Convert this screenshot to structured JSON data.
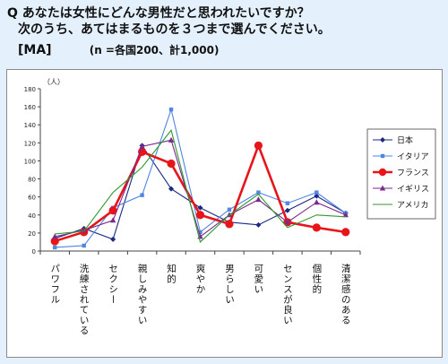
{
  "question": {
    "line1": "Q あなたは女性にどんな男性だと思われたいですか？",
    "line2": "次のうち、あてはまるものを３つまで選んでください。",
    "tag": "[MA]",
    "sample": "(n =各国200、計1,000)"
  },
  "colors": {
    "page_background": "#e4f1fc",
    "chart_background": "#ffffff",
    "frame": "#8a8a8a"
  },
  "chart_data": {
    "type": "line",
    "unit_label": "（人）",
    "ylim": [
      0,
      180
    ],
    "yticks": [
      0,
      20,
      40,
      60,
      80,
      100,
      120,
      140,
      160,
      180
    ],
    "grid": false,
    "legend_position": "right",
    "categories": [
      "パワフル",
      "洗練されている",
      "セクシー",
      "親しみやすい",
      "知的",
      "爽やか",
      "男らしい",
      "可愛い",
      "センスが良い",
      "個性的",
      "清潔感のある"
    ],
    "series": [
      {
        "name": "日本",
        "color": "#1a2a80",
        "marker": "diamond",
        "values": [
          14,
          25,
          13,
          117,
          69,
          48,
          32,
          29,
          45,
          61,
          42
        ]
      },
      {
        "name": "イタリア",
        "color": "#4f86e0",
        "marker": "square",
        "values": [
          4,
          6,
          48,
          62,
          157,
          21,
          46,
          65,
          53,
          65,
          42
        ]
      },
      {
        "name": "フランス",
        "color": "#e8141a",
        "marker": "circle",
        "values": [
          11,
          21,
          45,
          110,
          97,
          40,
          30,
          117,
          32,
          26,
          21
        ]
      },
      {
        "name": "イギリス",
        "color": "#7a2a8c",
        "marker": "triangle",
        "values": [
          16,
          23,
          34,
          116,
          123,
          16,
          40,
          57,
          32,
          54,
          40
        ]
      },
      {
        "name": "アメリカ",
        "color": "#2f9a2f",
        "marker": "none",
        "values": [
          19,
          22,
          65,
          93,
          134,
          10,
          40,
          63,
          26,
          40,
          38
        ]
      }
    ]
  }
}
